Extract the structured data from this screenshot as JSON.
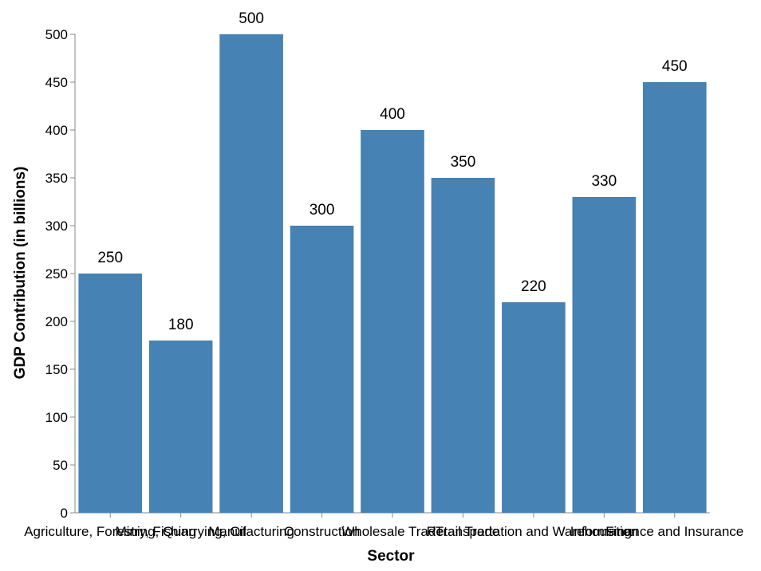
{
  "chart_data": {
    "type": "bar",
    "categories": [
      "Agriculture, Forestry, Fishing",
      "Mining, Quarrying, Oil",
      "Manufacturing",
      "Construction",
      "Wholesale Trade",
      "Retail Trade",
      "Transportation and Warehousing",
      "Information",
      "Finance and Insurance"
    ],
    "values": [
      250,
      180,
      500,
      300,
      400,
      350,
      220,
      330,
      450
    ],
    "xlabel": "Sector",
    "ylabel": "GDP Contribution (in billions)",
    "ylim": [
      0,
      500
    ],
    "yticks": [
      0,
      50,
      100,
      150,
      200,
      250,
      300,
      350,
      400,
      450,
      500
    ],
    "grid": false,
    "bar_color": "#4682b4",
    "show_data_labels": true
  }
}
